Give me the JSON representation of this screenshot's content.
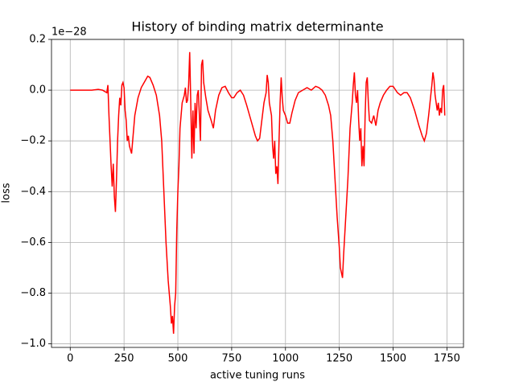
{
  "chart_data": {
    "type": "line",
    "title": "History of binding matrix determinante",
    "x_label": "active tuning runs",
    "y_label": "loss",
    "y_offset_label": "1e−28",
    "grid": true,
    "xlim": [
      -87,
      1827
    ],
    "ylim": [
      -1.014,
      0.2
    ],
    "xticks": [
      0,
      250,
      500,
      750,
      1000,
      1250,
      1500,
      1750
    ],
    "yticks": [
      {
        "value": 0.2,
        "label": "0.2"
      },
      {
        "value": 0.0,
        "label": "0.0"
      },
      {
        "value": -0.2,
        "label": "−0.2"
      },
      {
        "value": -0.4,
        "label": "−0.4"
      },
      {
        "value": -0.6,
        "label": "−0.6"
      },
      {
        "value": -0.8,
        "label": "−0.8"
      },
      {
        "value": -1.0,
        "label": "−1.0"
      }
    ],
    "x": [
      0,
      100,
      130,
      150,
      170,
      175,
      180,
      185,
      190,
      195,
      200,
      205,
      210,
      215,
      220,
      225,
      230,
      235,
      240,
      245,
      250,
      255,
      260,
      265,
      270,
      275,
      285,
      290,
      300,
      315,
      330,
      350,
      360,
      370,
      385,
      400,
      415,
      425,
      435,
      445,
      455,
      465,
      470,
      475,
      480,
      485,
      490,
      495,
      500,
      505,
      510,
      520,
      530,
      535,
      540,
      545,
      550,
      555,
      560,
      565,
      570,
      575,
      580,
      585,
      590,
      595,
      600,
      605,
      610,
      615,
      620,
      630,
      640,
      655,
      665,
      675,
      690,
      705,
      720,
      735,
      750,
      760,
      775,
      790,
      805,
      820,
      840,
      860,
      870,
      880,
      890,
      900,
      910,
      915,
      920,
      925,
      935,
      940,
      945,
      950,
      955,
      960,
      965,
      970,
      975,
      980,
      985,
      990,
      1000,
      1010,
      1020,
      1030,
      1045,
      1060,
      1080,
      1100,
      1120,
      1140,
      1155,
      1170,
      1185,
      1200,
      1210,
      1220,
      1230,
      1240,
      1250,
      1255,
      1260,
      1265,
      1270,
      1280,
      1290,
      1300,
      1310,
      1315,
      1320,
      1325,
      1330,
      1335,
      1340,
      1345,
      1350,
      1355,
      1360,
      1365,
      1370,
      1375,
      1380,
      1385,
      1390,
      1400,
      1410,
      1420,
      1430,
      1440,
      1455,
      1470,
      1485,
      1500,
      1520,
      1535,
      1550,
      1565,
      1580,
      1600,
      1620,
      1635,
      1645,
      1655,
      1665,
      1675,
      1680,
      1685,
      1690,
      1695,
      1700,
      1705,
      1710,
      1715,
      1720,
      1725,
      1730,
      1735,
      1740
    ],
    "series": [
      {
        "color": "#ff0000",
        "values": [
          0,
          0,
          0.003,
          0,
          -0.01,
          0.02,
          -0.1,
          -0.2,
          -0.3,
          -0.38,
          -0.29,
          -0.42,
          -0.48,
          -0.35,
          -0.2,
          -0.1,
          -0.03,
          -0.06,
          0.02,
          0.03,
          0.01,
          -0.08,
          -0.12,
          -0.2,
          -0.18,
          -0.22,
          -0.25,
          -0.2,
          -0.1,
          -0.03,
          0.01,
          0.04,
          0.055,
          0.05,
          0.02,
          -0.02,
          -0.1,
          -0.2,
          -0.4,
          -0.6,
          -0.75,
          -0.85,
          -0.92,
          -0.89,
          -0.96,
          -0.85,
          -0.8,
          -0.55,
          -0.4,
          -0.3,
          -0.15,
          -0.05,
          -0.02,
          0.01,
          -0.05,
          -0.04,
          0.02,
          0.15,
          -0.05,
          -0.27,
          -0.08,
          -0.25,
          -0.05,
          -0.15,
          -0.02,
          0.0,
          -0.1,
          -0.2,
          0.1,
          0.12,
          0.03,
          -0.03,
          -0.08,
          -0.12,
          -0.15,
          -0.08,
          -0.02,
          0.01,
          0.015,
          -0.01,
          -0.03,
          -0.03,
          -0.01,
          0.0,
          -0.02,
          -0.06,
          -0.12,
          -0.18,
          -0.2,
          -0.19,
          -0.12,
          -0.05,
          -0.01,
          0.06,
          0.03,
          -0.05,
          -0.1,
          -0.22,
          -0.27,
          -0.2,
          -0.33,
          -0.3,
          -0.37,
          -0.2,
          -0.05,
          0.05,
          -0.03,
          -0.08,
          -0.1,
          -0.13,
          -0.13,
          -0.09,
          -0.04,
          -0.01,
          0.0,
          0.01,
          0.0,
          0.015,
          0.01,
          0.0,
          -0.02,
          -0.06,
          -0.1,
          -0.2,
          -0.35,
          -0.5,
          -0.62,
          -0.7,
          -0.72,
          -0.74,
          -0.65,
          -0.5,
          -0.35,
          -0.15,
          -0.05,
          0.02,
          0.07,
          -0.02,
          -0.05,
          0.0,
          -0.12,
          -0.2,
          -0.15,
          -0.3,
          -0.22,
          -0.3,
          -0.1,
          0.03,
          0.05,
          -0.05,
          -0.12,
          -0.13,
          -0.1,
          -0.14,
          -0.08,
          -0.05,
          -0.02,
          0.0,
          0.015,
          0.015,
          -0.01,
          -0.02,
          -0.01,
          -0.01,
          -0.03,
          -0.08,
          -0.14,
          -0.18,
          -0.2,
          -0.17,
          -0.1,
          -0.02,
          0.02,
          0.07,
          0.04,
          -0.02,
          -0.05,
          -0.08,
          -0.05,
          -0.1,
          -0.07,
          -0.09,
          0.0,
          0.02,
          -0.1
        ]
      }
    ]
  }
}
